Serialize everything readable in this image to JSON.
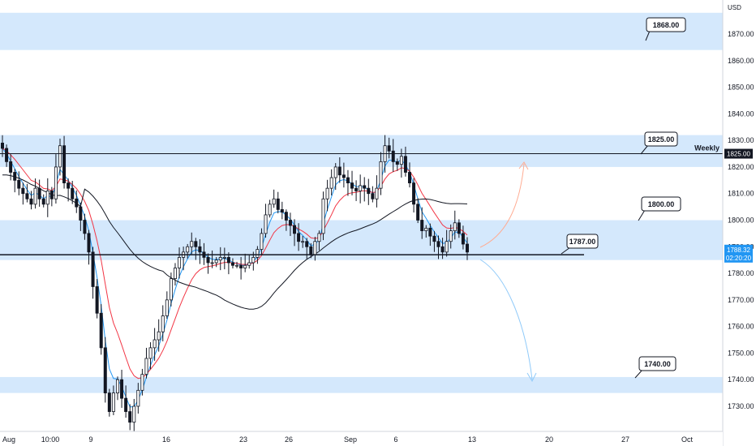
{
  "chart_data": {
    "type": "candlestick",
    "currency_label": "USD",
    "ylim": [
      1720,
      1880
    ],
    "y_ticks": [
      "1870.00",
      "1860.00",
      "1850.00",
      "1840.00",
      "1830.00",
      "1820.00",
      "1810.00",
      "1800.00",
      "1790.00",
      "1780.00",
      "1770.00",
      "1760.00",
      "1750.00",
      "1740.00",
      "1730.00"
    ],
    "x_ticks": [
      "Aug",
      "10:00",
      "9",
      "16",
      "23",
      "26",
      "Sep",
      "6",
      "13",
      "20",
      "27",
      "Oct"
    ],
    "zones": [
      {
        "from": 1864,
        "to": 1878
      },
      {
        "from": 1820,
        "to": 1832
      },
      {
        "from": 1785,
        "to": 1800
      },
      {
        "from": 1735,
        "to": 1741
      }
    ],
    "levels": [
      {
        "label": "Weekly",
        "value": 1825
      },
      {
        "label": "",
        "value": 1787
      }
    ],
    "callouts": [
      "1868.00",
      "1825.00",
      "1800.00",
      "1787.00",
      "1740.00"
    ],
    "weekly_label": "Weekly",
    "price_tags": [
      {
        "text": "1825.00",
        "color": "#131722"
      },
      {
        "text": "1788.32",
        "sub": "02:20:20",
        "color": "#2196f3"
      }
    ],
    "candles": [
      1827,
      1822,
      1818,
      1815,
      1812,
      1810,
      1808,
      1806,
      1812,
      1808,
      1806,
      1811,
      1808,
      1820,
      1828,
      1814,
      1812,
      1808,
      1805,
      1800,
      1795,
      1788,
      1775,
      1765,
      1752,
      1735,
      1728,
      1735,
      1740,
      1733,
      1728,
      1724,
      1730,
      1736,
      1742,
      1748,
      1752,
      1755,
      1758,
      1764,
      1770,
      1778,
      1782,
      1786,
      1788,
      1790,
      1792,
      1790,
      1788,
      1786,
      1784,
      1784,
      1785,
      1786,
      1786,
      1784,
      1783,
      1783,
      1782,
      1783,
      1784,
      1786,
      1789,
      1795,
      1802,
      1806,
      1808,
      1804,
      1803,
      1800,
      1798,
      1795,
      1792,
      1792,
      1790,
      1787,
      1792,
      1795,
      1808,
      1812,
      1816,
      1820,
      1817,
      1816,
      1814,
      1812,
      1811,
      1813,
      1812,
      1810,
      1808,
      1812,
      1822,
      1828,
      1826,
      1822,
      1821,
      1824,
      1818,
      1814,
      1806,
      1800,
      1796,
      1797,
      1794,
      1792,
      1790,
      1788,
      1792,
      1796,
      1799,
      1795,
      1791,
      1788
    ]
  }
}
